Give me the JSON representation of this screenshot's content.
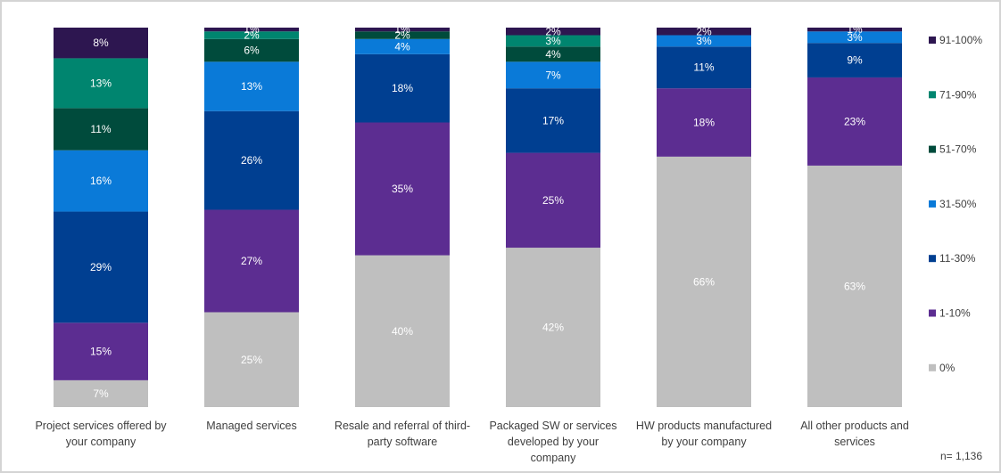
{
  "chart_data": {
    "type": "bar",
    "stacked": true,
    "normalized": true,
    "ylim": [
      0,
      100
    ],
    "grid": false,
    "legend_position": "right",
    "categories": [
      [
        "Project services offered by",
        "your company"
      ],
      [
        "Managed services"
      ],
      [
        "Resale and referral of third-",
        "party software"
      ],
      [
        "Packaged SW or services",
        "developed by your",
        "company"
      ],
      [
        "HW products manufactured",
        "by your company"
      ],
      [
        "All other products and",
        "services"
      ]
    ],
    "series": [
      {
        "name": "0%",
        "color": "#bfbfbf",
        "label_color": "#ffffff",
        "values": [
          7,
          25,
          40,
          42,
          66,
          63
        ]
      },
      {
        "name": "1-10%",
        "color": "#5c2d91",
        "label_color": "#ffffff",
        "values": [
          15,
          27,
          35,
          25,
          18,
          23
        ]
      },
      {
        "name": "11-30%",
        "color": "#003f91",
        "label_color": "#ffffff",
        "values": [
          29,
          26,
          18,
          17,
          11,
          9
        ]
      },
      {
        "name": "31-50%",
        "color": "#0a7ad8",
        "label_color": "#ffffff",
        "values": [
          16,
          13,
          4,
          7,
          3,
          3
        ]
      },
      {
        "name": "51-70%",
        "color": "#004b3c",
        "label_color": "#ffffff",
        "values": [
          11,
          6,
          2,
          4,
          0,
          0
        ]
      },
      {
        "name": "71-90%",
        "color": "#00856f",
        "label_color": "#ffffff",
        "values": [
          13,
          2,
          0,
          3,
          0,
          0
        ]
      },
      {
        "name": "91-100%",
        "color": "#2d1650",
        "label_color": "#ffffff",
        "values": [
          8,
          1,
          1,
          2,
          2,
          1
        ]
      }
    ],
    "segment_labels": [
      [
        "7%",
        "15%",
        "29%",
        "16%",
        "11%",
        "13%",
        "8%"
      ],
      [
        "25%",
        "27%",
        "26%",
        "13%",
        "6%",
        "2%",
        "1%"
      ],
      [
        "40%",
        "35%",
        "18%",
        "4%",
        "2%",
        "",
        "1%"
      ],
      [
        "42%",
        "25%",
        "17%",
        "7%",
        "4%",
        "3%",
        "2%"
      ],
      [
        "66%",
        "18%",
        "11%",
        "3%",
        "",
        "",
        "2%"
      ],
      [
        "63%",
        "23%",
        "9%",
        "3%",
        "",
        "",
        "1%"
      ]
    ],
    "footnote": "n= 1,136"
  }
}
